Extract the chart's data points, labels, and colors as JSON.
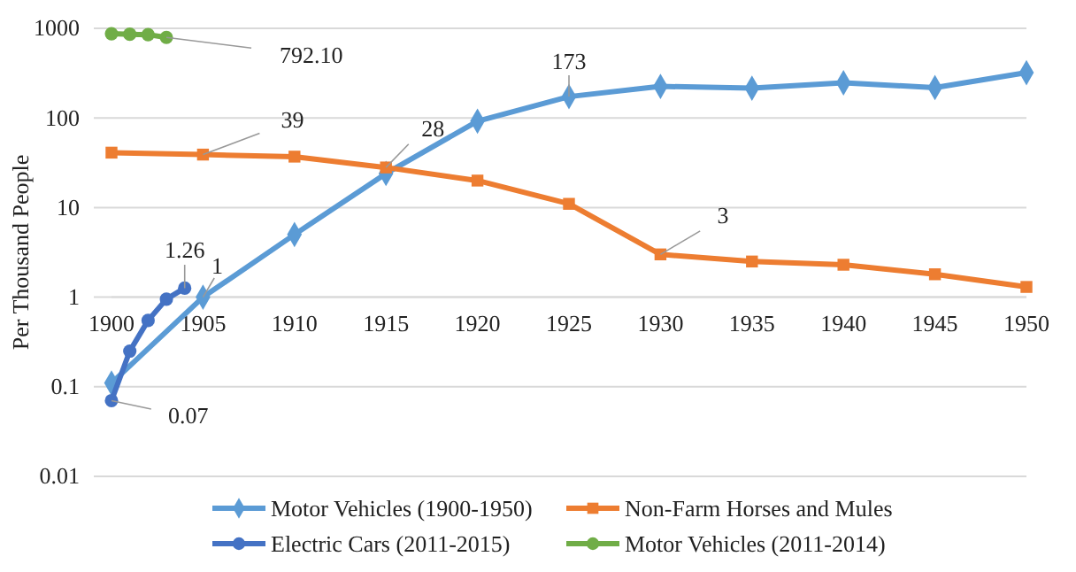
{
  "chart_data": {
    "type": "line",
    "ylabel": "Per Thousand People",
    "log": true,
    "grid": "y",
    "legend": "bottom",
    "x": [
      1900,
      1905,
      1910,
      1915,
      1920,
      1925,
      1930,
      1935,
      1940,
      1945,
      1950
    ],
    "xlim": [
      1900,
      1950
    ],
    "xticks": [
      1900,
      1905,
      1910,
      1915,
      1920,
      1925,
      1930,
      1935,
      1940,
      1945,
      1950
    ],
    "ylim": [
      0.01,
      1000
    ],
    "yticks": [
      0.01,
      0.1,
      1,
      10,
      100,
      1000
    ],
    "series": [
      {
        "name": "Motor Vehicles (1900-1950)",
        "color": "#5b9bd5",
        "marker": "diamond",
        "values": [
          0.11,
          1,
          5,
          24,
          92,
          173,
          225,
          215,
          247,
          218,
          320
        ],
        "value_labels": [
          null,
          "1",
          null,
          null,
          null,
          "173",
          null,
          null,
          null,
          null,
          null
        ]
      },
      {
        "name": "Non-Farm Horses and Mules",
        "color": "#ed7d31",
        "marker": "square",
        "values": [
          41,
          39,
          37,
          28,
          20,
          11,
          3,
          2.5,
          2.3,
          1.8,
          1.3
        ],
        "value_labels": [
          null,
          "39",
          null,
          "28",
          null,
          null,
          "3",
          null,
          null,
          null,
          null
        ]
      },
      {
        "name": "Electric Cars (2011-2015)",
        "color": "#4472c4",
        "marker": "circle",
        "x": [
          1900,
          1901,
          1902,
          1903,
          1904
        ],
        "values": [
          0.07,
          0.25,
          0.55,
          0.95,
          1.26
        ],
        "value_labels": [
          "0.07",
          null,
          null,
          null,
          "1.26"
        ]
      },
      {
        "name": "Motor Vehicles (2011-2014)",
        "color": "#70ad47",
        "marker": "circle",
        "x": [
          1900,
          1901,
          1902,
          1903
        ],
        "values": [
          870,
          860,
          850,
          792.1
        ],
        "value_labels": [
          null,
          null,
          null,
          "792.10"
        ]
      }
    ]
  }
}
